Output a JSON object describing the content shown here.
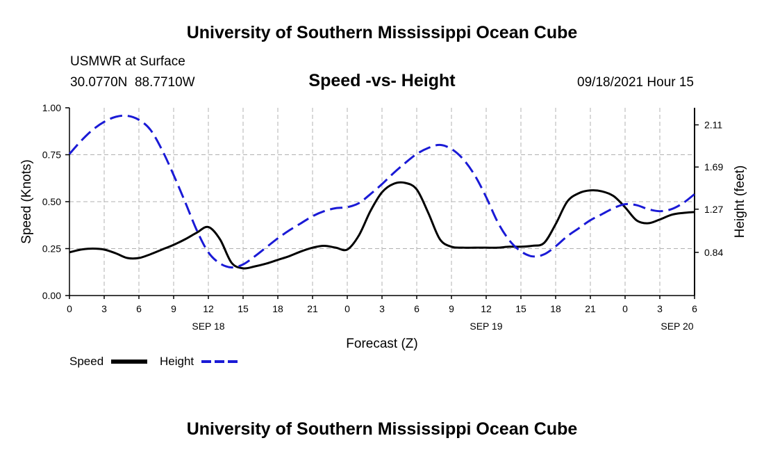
{
  "header": {
    "title": "University of Southern Mississippi Ocean Cube",
    "station": "USMWR at Surface",
    "coords": "30.0770N  88.7710W",
    "plot_title": "Speed -vs- Height",
    "datetime": "09/18/2021 Hour 15"
  },
  "footer": {
    "title": "University of Southern Mississippi Ocean Cube"
  },
  "legend": {
    "speed": "Speed",
    "height": "Height"
  },
  "colors": {
    "speed": "#000000",
    "height": "#1a1ad6",
    "grid": "#b0b0b0"
  },
  "chart_data": {
    "type": "line",
    "title": "Speed -vs- Height",
    "xlabel": "Forecast (Z)",
    "ylabel": "Speed (Knots)",
    "y2label": "Height (feet)",
    "xlim": [
      0,
      54
    ],
    "ylim": [
      0,
      1
    ],
    "y2lim": [
      0.41,
      2.28
    ],
    "grid": true,
    "x_ticks": [
      0,
      3,
      6,
      9,
      12,
      15,
      18,
      21,
      24,
      27,
      30,
      33,
      36,
      39,
      42,
      45,
      48,
      51,
      54
    ],
    "x_tick_labels": [
      "0",
      "3",
      "6",
      "9",
      "12",
      "15",
      "18",
      "21",
      "0",
      "3",
      "6",
      "9",
      "12",
      "15",
      "18",
      "21",
      "0",
      "3",
      "6"
    ],
    "y_ticks": [
      0,
      0.25,
      0.5,
      0.75,
      1.0
    ],
    "y_tick_labels": [
      "0.00",
      "0.25",
      "0.50",
      "0.75",
      "1.00"
    ],
    "y2_ticks": [
      0.84,
      1.27,
      1.69,
      2.11
    ],
    "y2_tick_labels": [
      "0.84",
      "1.27",
      "1.69",
      "2.11"
    ],
    "date_labels": [
      {
        "x": 12,
        "label": "SEP 18"
      },
      {
        "x": 36,
        "label": "SEP 19"
      },
      {
        "x": 52.5,
        "label": "SEP 20"
      }
    ],
    "series": [
      {
        "name": "Speed",
        "axis": "left",
        "style": "solid",
        "x": [
          0,
          1,
          2,
          3,
          4,
          5,
          6,
          7,
          8,
          9,
          10,
          11,
          12,
          13,
          14,
          15,
          16,
          17,
          18,
          19,
          20,
          21,
          22,
          23,
          24,
          25,
          26,
          27,
          28,
          29,
          30,
          31,
          32,
          33,
          34,
          35,
          36,
          37,
          38,
          39,
          40,
          41,
          42,
          43,
          44,
          45,
          46,
          47,
          48,
          49,
          50,
          51,
          52,
          53,
          54
        ],
        "values": [
          0.23,
          0.245,
          0.25,
          0.245,
          0.225,
          0.2,
          0.2,
          0.22,
          0.245,
          0.27,
          0.3,
          0.335,
          0.365,
          0.3,
          0.175,
          0.145,
          0.155,
          0.17,
          0.19,
          0.21,
          0.235,
          0.255,
          0.265,
          0.255,
          0.245,
          0.32,
          0.45,
          0.55,
          0.595,
          0.6,
          0.565,
          0.44,
          0.3,
          0.26,
          0.255,
          0.255,
          0.255,
          0.255,
          0.26,
          0.26,
          0.265,
          0.28,
          0.38,
          0.5,
          0.545,
          0.56,
          0.555,
          0.53,
          0.47,
          0.4,
          0.385,
          0.405,
          0.43,
          0.44,
          0.445
        ]
      },
      {
        "name": "Height",
        "axis": "right",
        "style": "dashed",
        "x": [
          0,
          1,
          2,
          3,
          4,
          5,
          6,
          7,
          8,
          9,
          10,
          11,
          12,
          13,
          14,
          15,
          16,
          17,
          18,
          19,
          20,
          21,
          22,
          23,
          24,
          25,
          26,
          27,
          28,
          29,
          30,
          31,
          32,
          33,
          34,
          35,
          36,
          37,
          38,
          39,
          40,
          41,
          42,
          43,
          44,
          45,
          46,
          47,
          48,
          49,
          50,
          51,
          52,
          53,
          54
        ],
        "values": [
          1.82,
          1.95,
          2.06,
          2.14,
          2.19,
          2.2,
          2.16,
          2.06,
          1.86,
          1.61,
          1.34,
          1.06,
          0.84,
          0.73,
          0.69,
          0.72,
          0.8,
          0.89,
          0.98,
          1.06,
          1.13,
          1.2,
          1.25,
          1.28,
          1.29,
          1.33,
          1.42,
          1.52,
          1.63,
          1.73,
          1.82,
          1.88,
          1.91,
          1.87,
          1.77,
          1.61,
          1.39,
          1.14,
          0.96,
          0.85,
          0.8,
          0.82,
          0.9,
          1.0,
          1.08,
          1.16,
          1.22,
          1.28,
          1.32,
          1.31,
          1.27,
          1.25,
          1.27,
          1.33,
          1.42
        ]
      }
    ]
  }
}
